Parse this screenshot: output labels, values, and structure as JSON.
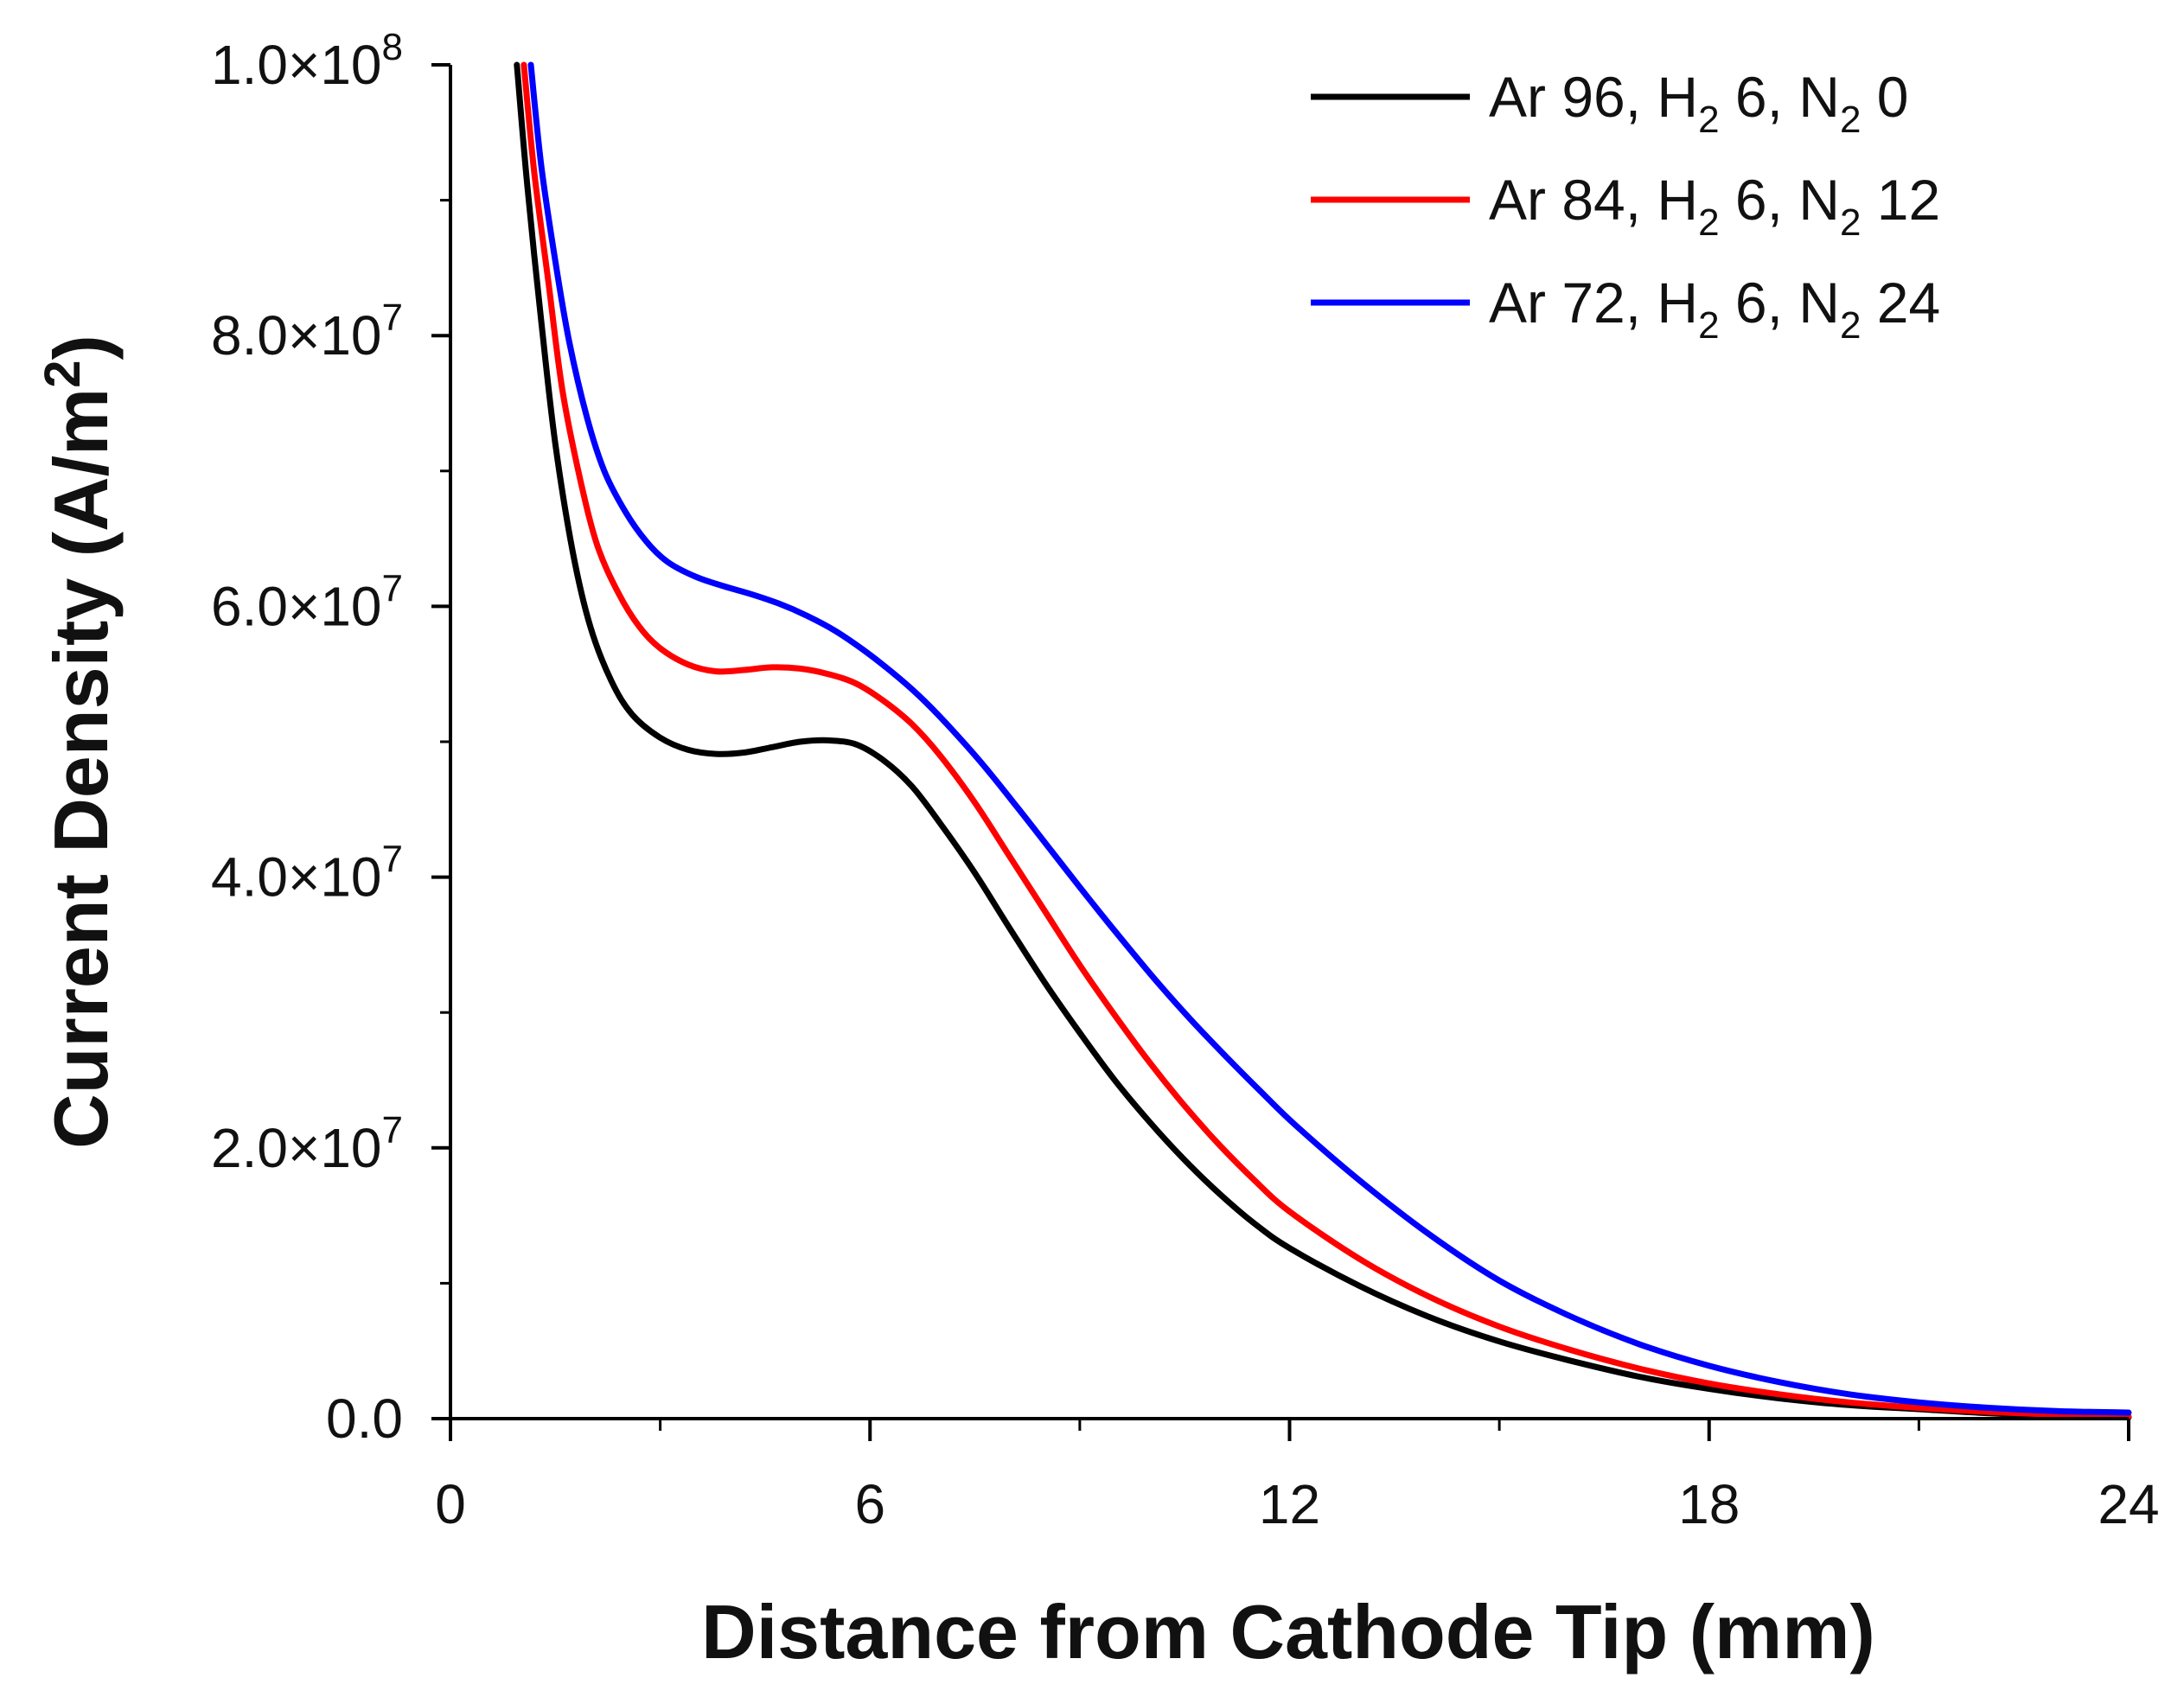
{
  "chart_data": {
    "type": "line",
    "title": "",
    "xlabel": "Distance from Cathode Tip (mm)",
    "ylabel": "Current Density (A/m²)",
    "ylabel_base": "Current Density (A/m",
    "ylabel_sup": "2",
    "ylabel_end": ")",
    "xlim": [
      0,
      24
    ],
    "ylim": [
      0,
      100000000
    ],
    "x_ticks": [
      0,
      6,
      12,
      18,
      24
    ],
    "x_tick_labels": [
      "0",
      "6",
      "12",
      "18",
      "24"
    ],
    "y_ticks": [
      0,
      20000000,
      40000000,
      60000000,
      80000000,
      100000000
    ],
    "y_tick_labels": [
      {
        "mantissa": "0.0",
        "exp": ""
      },
      {
        "mantissa": "2.0×10",
        "exp": "7"
      },
      {
        "mantissa": "4.0×10",
        "exp": "7"
      },
      {
        "mantissa": "6.0×10",
        "exp": "7"
      },
      {
        "mantissa": "8.0×10",
        "exp": "7"
      },
      {
        "mantissa": "1.0×10",
        "exp": "8"
      }
    ],
    "grid": false,
    "legend_position": "top-right",
    "series": [
      {
        "name": "Ar 96, H2 6, N2 0",
        "legend": [
          "Ar 96, H",
          "2",
          " 6, N",
          "2",
          " 0"
        ],
        "color": "#000000",
        "x": [
          0.95,
          1.1,
          1.3,
          1.5,
          1.75,
          2.0,
          2.3,
          2.6,
          3.0,
          3.4,
          3.8,
          4.2,
          4.6,
          5.0,
          5.4,
          5.8,
          6.2,
          6.6,
          7.0,
          7.5,
          8.0,
          8.5,
          9.0,
          9.5,
          10.0,
          10.5,
          11.0,
          11.5,
          12.0,
          13.0,
          14.0,
          15.0,
          16.0,
          17.0,
          18.0,
          19.0,
          20.0,
          21.0,
          22.0,
          23.0,
          24.0
        ],
        "y": [
          100000000,
          91000000,
          81000000,
          72000000,
          64000000,
          58500000,
          54500000,
          52000000,
          50300000,
          49400000,
          49100000,
          49200000,
          49600000,
          50000000,
          50100000,
          49800000,
          48600000,
          46700000,
          44000000,
          40300000,
          36200000,
          32200000,
          28500000,
          25000000,
          21900000,
          19100000,
          16600000,
          14400000,
          12600000,
          9800000,
          7500000,
          5700000,
          4300000,
          3100000,
          2200000,
          1500000,
          1000000,
          700000,
          400000,
          200000,
          100000
        ]
      },
      {
        "name": "Ar 84, H2 6, N2 12",
        "legend": [
          "Ar 84, H",
          "2",
          " 6, N",
          "2",
          " 12"
        ],
        "color": "#ff0000",
        "x": [
          1.05,
          1.2,
          1.4,
          1.6,
          1.85,
          2.1,
          2.4,
          2.7,
          3.0,
          3.4,
          3.8,
          4.2,
          4.6,
          5.0,
          5.4,
          5.8,
          6.2,
          6.6,
          7.0,
          7.5,
          8.0,
          8.5,
          9.0,
          9.5,
          10.0,
          10.5,
          11.0,
          11.5,
          12.0,
          13.0,
          14.0,
          15.0,
          16.0,
          17.0,
          18.0,
          19.0,
          20.0,
          21.0,
          22.0,
          23.0,
          24.0
        ],
        "y": [
          100000000,
          92000000,
          84000000,
          76000000,
          69500000,
          64500000,
          61000000,
          58500000,
          56900000,
          55700000,
          55200000,
          55300000,
          55500000,
          55400000,
          55000000,
          54300000,
          53000000,
          51300000,
          49000000,
          45500000,
          41500000,
          37500000,
          33500000,
          29800000,
          26300000,
          23100000,
          20200000,
          17600000,
          15300000,
          11800000,
          9000000,
          6800000,
          5100000,
          3700000,
          2600000,
          1800000,
          1200000,
          800000,
          500000,
          300000,
          150000
        ]
      },
      {
        "name": "Ar 72, H2 6, N2 24",
        "legend": [
          "Ar 72, H",
          "2",
          " 6, N",
          "2",
          " 24"
        ],
        "color": "#0000ff",
        "x": [
          1.15,
          1.3,
          1.5,
          1.7,
          1.95,
          2.2,
          2.5,
          2.8,
          3.1,
          3.5,
          3.9,
          4.3,
          4.7,
          5.1,
          5.5,
          5.9,
          6.3,
          6.7,
          7.1,
          7.6,
          8.1,
          8.6,
          9.1,
          9.6,
          10.1,
          10.6,
          11.1,
          11.6,
          12.1,
          13.0,
          14.0,
          15.0,
          16.0,
          17.0,
          18.0,
          19.0,
          20.0,
          21.0,
          22.0,
          23.0,
          24.0
        ],
        "y": [
          100000000,
          92500000,
          85500000,
          79500000,
          74000000,
          70000000,
          67000000,
          64800000,
          63300000,
          62200000,
          61500000,
          60900000,
          60200000,
          59300000,
          58200000,
          56800000,
          55200000,
          53400000,
          51300000,
          48400000,
          45200000,
          41900000,
          38600000,
          35400000,
          32300000,
          29400000,
          26700000,
          24100000,
          21600000,
          17600000,
          13600000,
          10200000,
          7600000,
          5500000,
          3900000,
          2700000,
          1800000,
          1200000,
          800000,
          550000,
          450000
        ]
      }
    ]
  }
}
